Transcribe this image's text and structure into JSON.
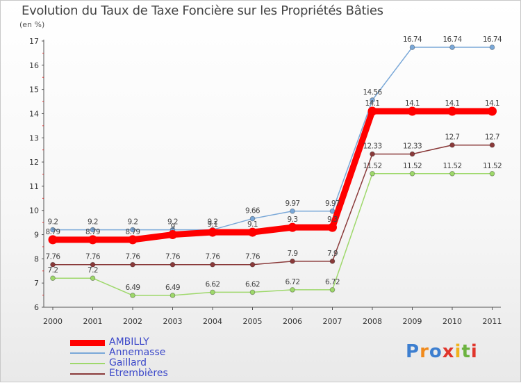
{
  "title": "Evolution du Taux de Taxe Foncière sur les Propriétés Bâties",
  "unit_label": "(en %)",
  "logo_text": "Proxiti",
  "chart_data": {
    "type": "line",
    "title": "Evolution du Taux de Taxe Foncière sur les Propriétés Bâties",
    "ylabel": "(en %)",
    "xlabel": "",
    "ylim": [
      6,
      17
    ],
    "y_ticks": [
      "6",
      "7",
      "8",
      "9",
      "10",
      "11",
      "12",
      "13",
      "14",
      "15",
      "16",
      "17"
    ],
    "categories": [
      "2000",
      "2001",
      "2002",
      "2003",
      "2004",
      "2005",
      "2006",
      "2007",
      "2008",
      "2009",
      "2010",
      "2011"
    ],
    "series": [
      {
        "name": "AMBILLY",
        "color": "#ff0000",
        "values": [
          8.79,
          8.79,
          8.79,
          9,
          9.1,
          9.1,
          9.3,
          9.3,
          14.1,
          14.1,
          14.1,
          14.1
        ],
        "labels": [
          "8.79",
          "8.79",
          "8.79",
          "9",
          "9.1",
          "9.1",
          "9.3",
          "9.3",
          "14.1",
          "14.1",
          "14.1",
          "14.1"
        ]
      },
      {
        "name": "Annemasse",
        "color": "#7aa8d8",
        "values": [
          9.2,
          9.2,
          9.2,
          9.2,
          9.2,
          9.66,
          9.97,
          9.97,
          14.56,
          16.74,
          16.74,
          16.74
        ],
        "labels": [
          "9.2",
          "9.2",
          "9.2",
          "9.2",
          "9.2",
          "9.66",
          "9.97",
          "9.97",
          "14.56",
          "16.74",
          "16.74",
          "16.74"
        ]
      },
      {
        "name": "Gaillard",
        "color": "#9ed86b",
        "values": [
          7.2,
          7.2,
          6.49,
          6.49,
          6.62,
          6.62,
          6.72,
          6.72,
          11.52,
          11.52,
          11.52,
          11.52
        ],
        "labels": [
          "7.2",
          "7.2",
          "6.49",
          "6.49",
          "6.62",
          "6.62",
          "6.72",
          "6.72",
          "11.52",
          "11.52",
          "11.52",
          "11.52"
        ]
      },
      {
        "name": "Etrembières",
        "color": "#8a3a3a",
        "values": [
          7.76,
          7.76,
          7.76,
          7.76,
          7.76,
          7.76,
          7.9,
          7.9,
          12.33,
          12.33,
          12.7,
          12.7
        ],
        "labels": [
          "7.76",
          "7.76",
          "7.76",
          "7.76",
          "7.76",
          "7.76",
          "7.9",
          "7.9",
          "12.33",
          "12.33",
          "12.7",
          "12.7"
        ]
      }
    ],
    "legend_position": "bottom-left"
  }
}
